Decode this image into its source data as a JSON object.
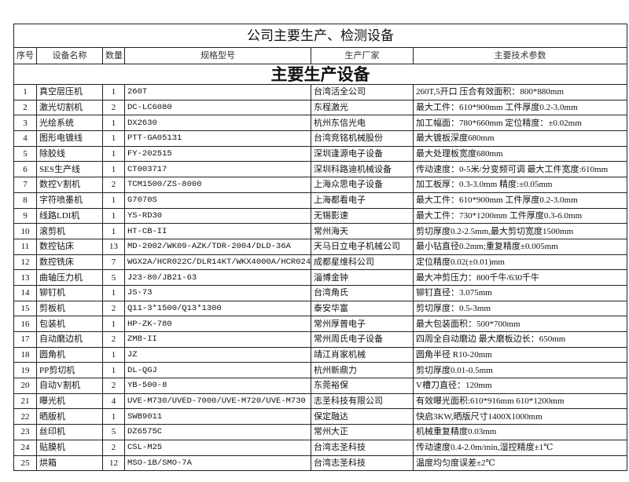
{
  "title": "公司主要生产、检测设备",
  "headers": [
    "序号",
    "设备名称",
    "数量",
    "规格型号",
    "生产厂家",
    "主要技术参数"
  ],
  "section": "主要生产设备",
  "rows": [
    [
      "1",
      "真空层压机",
      "1",
      "260T",
      "台湾活全公司",
      "260T,5开口 压合有效面积：800*880mm"
    ],
    [
      "2",
      "激光切割机",
      "2",
      "DC-LC6080",
      "东程激光",
      "最大工件：610*900mm 工件厚度0.2-3.0mm"
    ],
    [
      "3",
      "光绘系统",
      "1",
      "DX2630",
      "杭州东信光电",
      "加工幅面：780*660mm 定位精度：±0.02mm"
    ],
    [
      "4",
      "图形电镀线",
      "1",
      "PTT-GA05131",
      "台湾竞铭机械股份",
      "最大镀板深度680mm"
    ],
    [
      "5",
      "除胶线",
      "1",
      "FY-202515",
      "深圳逢源电子设备",
      "最大处理板宽度680mm"
    ],
    [
      "6",
      "SES生产线",
      "1",
      "CT003717",
      "深圳科路迪机械设备",
      "传动速度：0-5米/分变频可调 最大工件宽度:610mm"
    ],
    [
      "7",
      "数控V割机",
      "2",
      "TCM1500/ZS-8000",
      "上海众思电子设备",
      "加工板厚：0.3-3.0mm 精度:±0.05mm"
    ],
    [
      "8",
      "字符喷墨机",
      "1",
      "G7070S",
      "上海都看电子",
      "最大工件：610*900mm 工件厚度0.2-3.0mm"
    ],
    [
      "9",
      "线路LDI机",
      "1",
      "YS-RD30",
      "无锡影速",
      "最大工件：730*1200mm 工件厚度0.3-6.0mm"
    ],
    [
      "10",
      "滚剪机",
      "1",
      "HT-CB-II",
      "常州海天",
      "剪切厚度0.2-2.5mm,最大剪切宽度1500mm"
    ],
    [
      "11",
      "数控钻床",
      "13",
      "MD-2002/WK09-AZK/TDR-2004/DLD-36A",
      "天马日立电子机械公司",
      "最小钻直径0.2mm;重复精度±0.005mm"
    ],
    [
      "12",
      "数控铣床",
      "7",
      "WGX2A/HCR022C/DLR14KT/WKX4000A/HCR024CT",
      "成都星维科公司",
      "定位精度0.02(±0.01)mm"
    ],
    [
      "13",
      "曲轴压力机",
      "5",
      "J23-80/JB21-63",
      "淄博金钟",
      "最大冲剪压力：800千牛/630千牛"
    ],
    [
      "14",
      "铆钉机",
      "1",
      "JS-73",
      "台湾角氏",
      "铆钉直径：3.075mm"
    ],
    [
      "15",
      "剪板机",
      "2",
      "Q11-3*1500/Q13*1300",
      "泰安华富",
      "剪切厚度：0.5-3mm"
    ],
    [
      "16",
      "包装机",
      "1",
      "HP-ZK-780",
      "常州厚普电子",
      "最大包装面积：500*700mm"
    ],
    [
      "17",
      "自动磨边机",
      "2",
      "ZMB-II",
      "常州周氏电子设备",
      "四周全自动磨边 最大磨板边长：650mm"
    ],
    [
      "18",
      "圆角机",
      "1",
      "JZ",
      "靖江肖家机械",
      "圆角半径 R10-20mm"
    ],
    [
      "19",
      "PP剪切机",
      "1",
      "DL-QGJ",
      "杭州新鼎力",
      "剪切厚度0.01-0.5mm"
    ],
    [
      "20",
      "自动V割机",
      "2",
      "YB-500-8",
      "东莞裕保",
      "V槽刀直径：120mm"
    ],
    [
      "21",
      "曝光机",
      "4",
      "UVE-M730/UVED-7000/UVE-M720/UVE-M730",
      "志圣科技有限公司",
      "有效曝光面积:610*916mm  610*1200mm"
    ],
    [
      "22",
      "晒版机",
      "1",
      "SWB9011",
      "保定融达",
      "快启3KW,晒版尺寸1400X1000mm"
    ],
    [
      "23",
      "丝印机",
      "5",
      "DZ6575C",
      "常州大正",
      "机械重复精度0.03mm"
    ],
    [
      "24",
      "贴膜机",
      "2",
      "CSL-M25",
      "台湾志圣科技",
      "传动速度0.4-2.0m/min,湿控精度±1℃"
    ],
    [
      "25",
      "烘箱",
      "12",
      "MSO-1B/SMO-7A",
      "台湾志圣科技",
      "温度均匀度误差±2℃"
    ]
  ]
}
